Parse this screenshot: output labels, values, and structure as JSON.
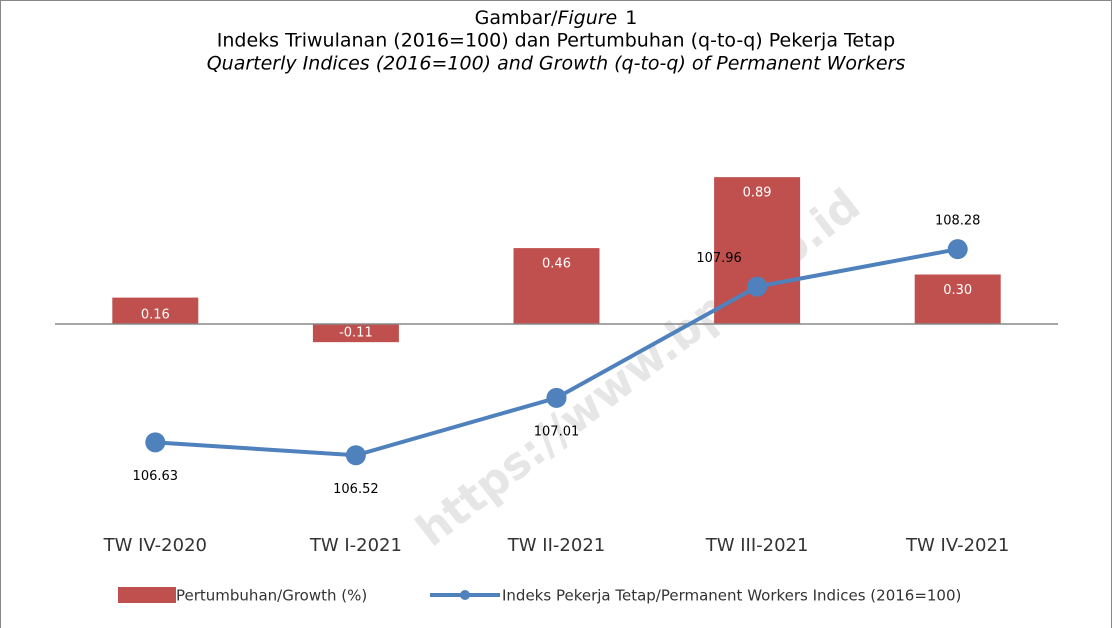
{
  "chart_data": {
    "type": "bar-line",
    "title": [
      "Gambar/",
      "Figure",
      "1"
    ],
    "subtitle": [
      "Indeks Triwulanan (2016=100) dan Pertumbuhan (q-to-q) Pekerja Tetap",
      "Quarterly Indices (2016=100) and Growth (q-to-q) of Permanent Workers"
    ],
    "watermark": "https://www.bps.go.id",
    "categories": [
      "TW IV-2020",
      "TW I-2021",
      "TW II-2021",
      "TW III-2021",
      "TW IV-2021"
    ],
    "ylim": [
      -1.2,
      1.0
    ],
    "y2lim": [
      105.95,
      109.05
    ],
    "series": [
      {
        "name": "Pertumbuhan/Growth (%)",
        "type": "bar",
        "color": "#c0504d",
        "values": [
          0.16,
          -0.11,
          0.46,
          0.89,
          0.3
        ],
        "value_labels": [
          "0.16",
          "-0.11",
          "0.46",
          "0.89",
          "0.30"
        ]
      },
      {
        "name": "Indeks Pekerja Tetap/Permanent Workers Indices (2016=100)",
        "type": "line",
        "axis": "y2",
        "color": "#4f81bd",
        "values": [
          106.63,
          106.52,
          107.01,
          107.96,
          108.28
        ]
      }
    ]
  }
}
